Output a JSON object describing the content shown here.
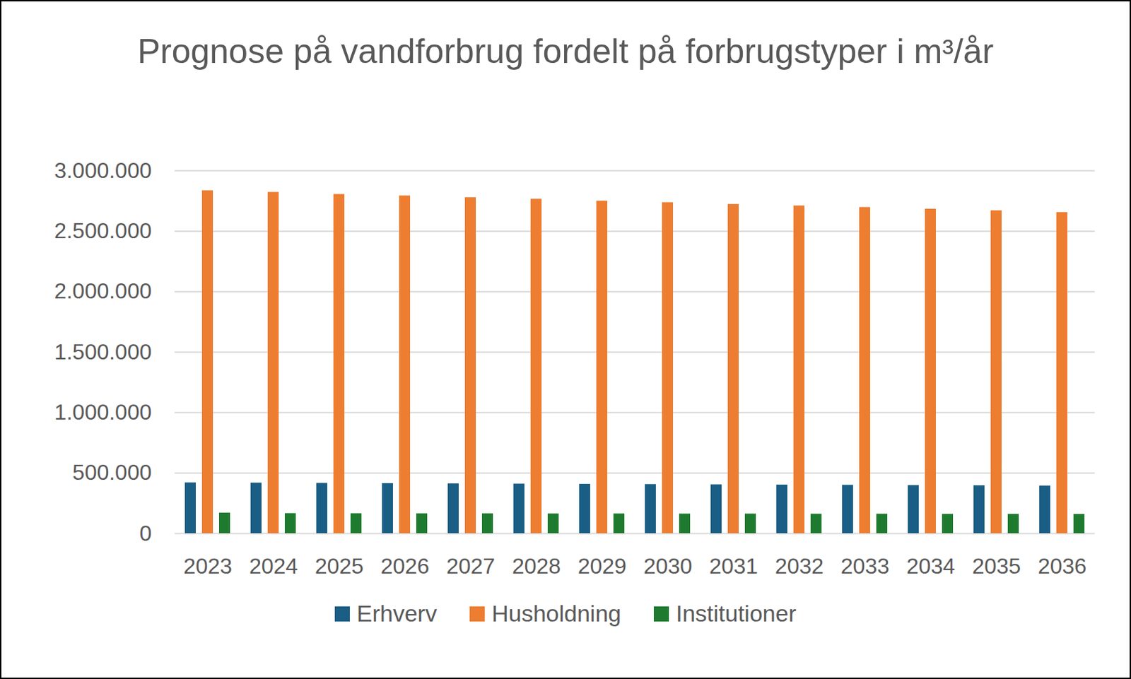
{
  "chart_data": {
    "type": "bar",
    "title": "Prognose på vandforbrug fordelt på forbrugstyper i m³/år",
    "categories": [
      "2023",
      "2024",
      "2025",
      "2026",
      "2027",
      "2028",
      "2029",
      "2030",
      "2031",
      "2032",
      "2033",
      "2034",
      "2035",
      "2036"
    ],
    "series": [
      {
        "name": "Erhverv",
        "color": "#1a5e85",
        "values": [
          420000,
          418000,
          416000,
          414000,
          412000,
          410000,
          408000,
          406000,
          404000,
          402000,
          400000,
          398000,
          396000,
          394000
        ]
      },
      {
        "name": "Husholdning",
        "color": "#ed7d31",
        "values": [
          2835000,
          2822000,
          2805000,
          2793000,
          2778000,
          2766000,
          2750000,
          2737000,
          2722000,
          2710000,
          2697000,
          2683000,
          2670000,
          2655000
        ]
      },
      {
        "name": "Institutioner",
        "color": "#1e7a2e",
        "values": [
          170000,
          166000,
          165000,
          164000,
          164000,
          163000,
          163000,
          162000,
          162000,
          161000,
          161000,
          160000,
          160000,
          159000
        ]
      }
    ],
    "ylim": [
      0,
      3000000
    ],
    "yticks": [
      0,
      {
        "value": 500000,
        "label": "500.000"
      },
      {
        "value": 1000000,
        "label": "1.000.000"
      },
      {
        "value": 1500000,
        "label": "1.500.000"
      },
      {
        "value": 2000000,
        "label": "2.000.000"
      },
      {
        "value": 2500000,
        "label": "2.500.000"
      },
      {
        "value": 3000000,
        "label": "3.000.000"
      }
    ],
    "grid": true,
    "legend": "bottom"
  }
}
